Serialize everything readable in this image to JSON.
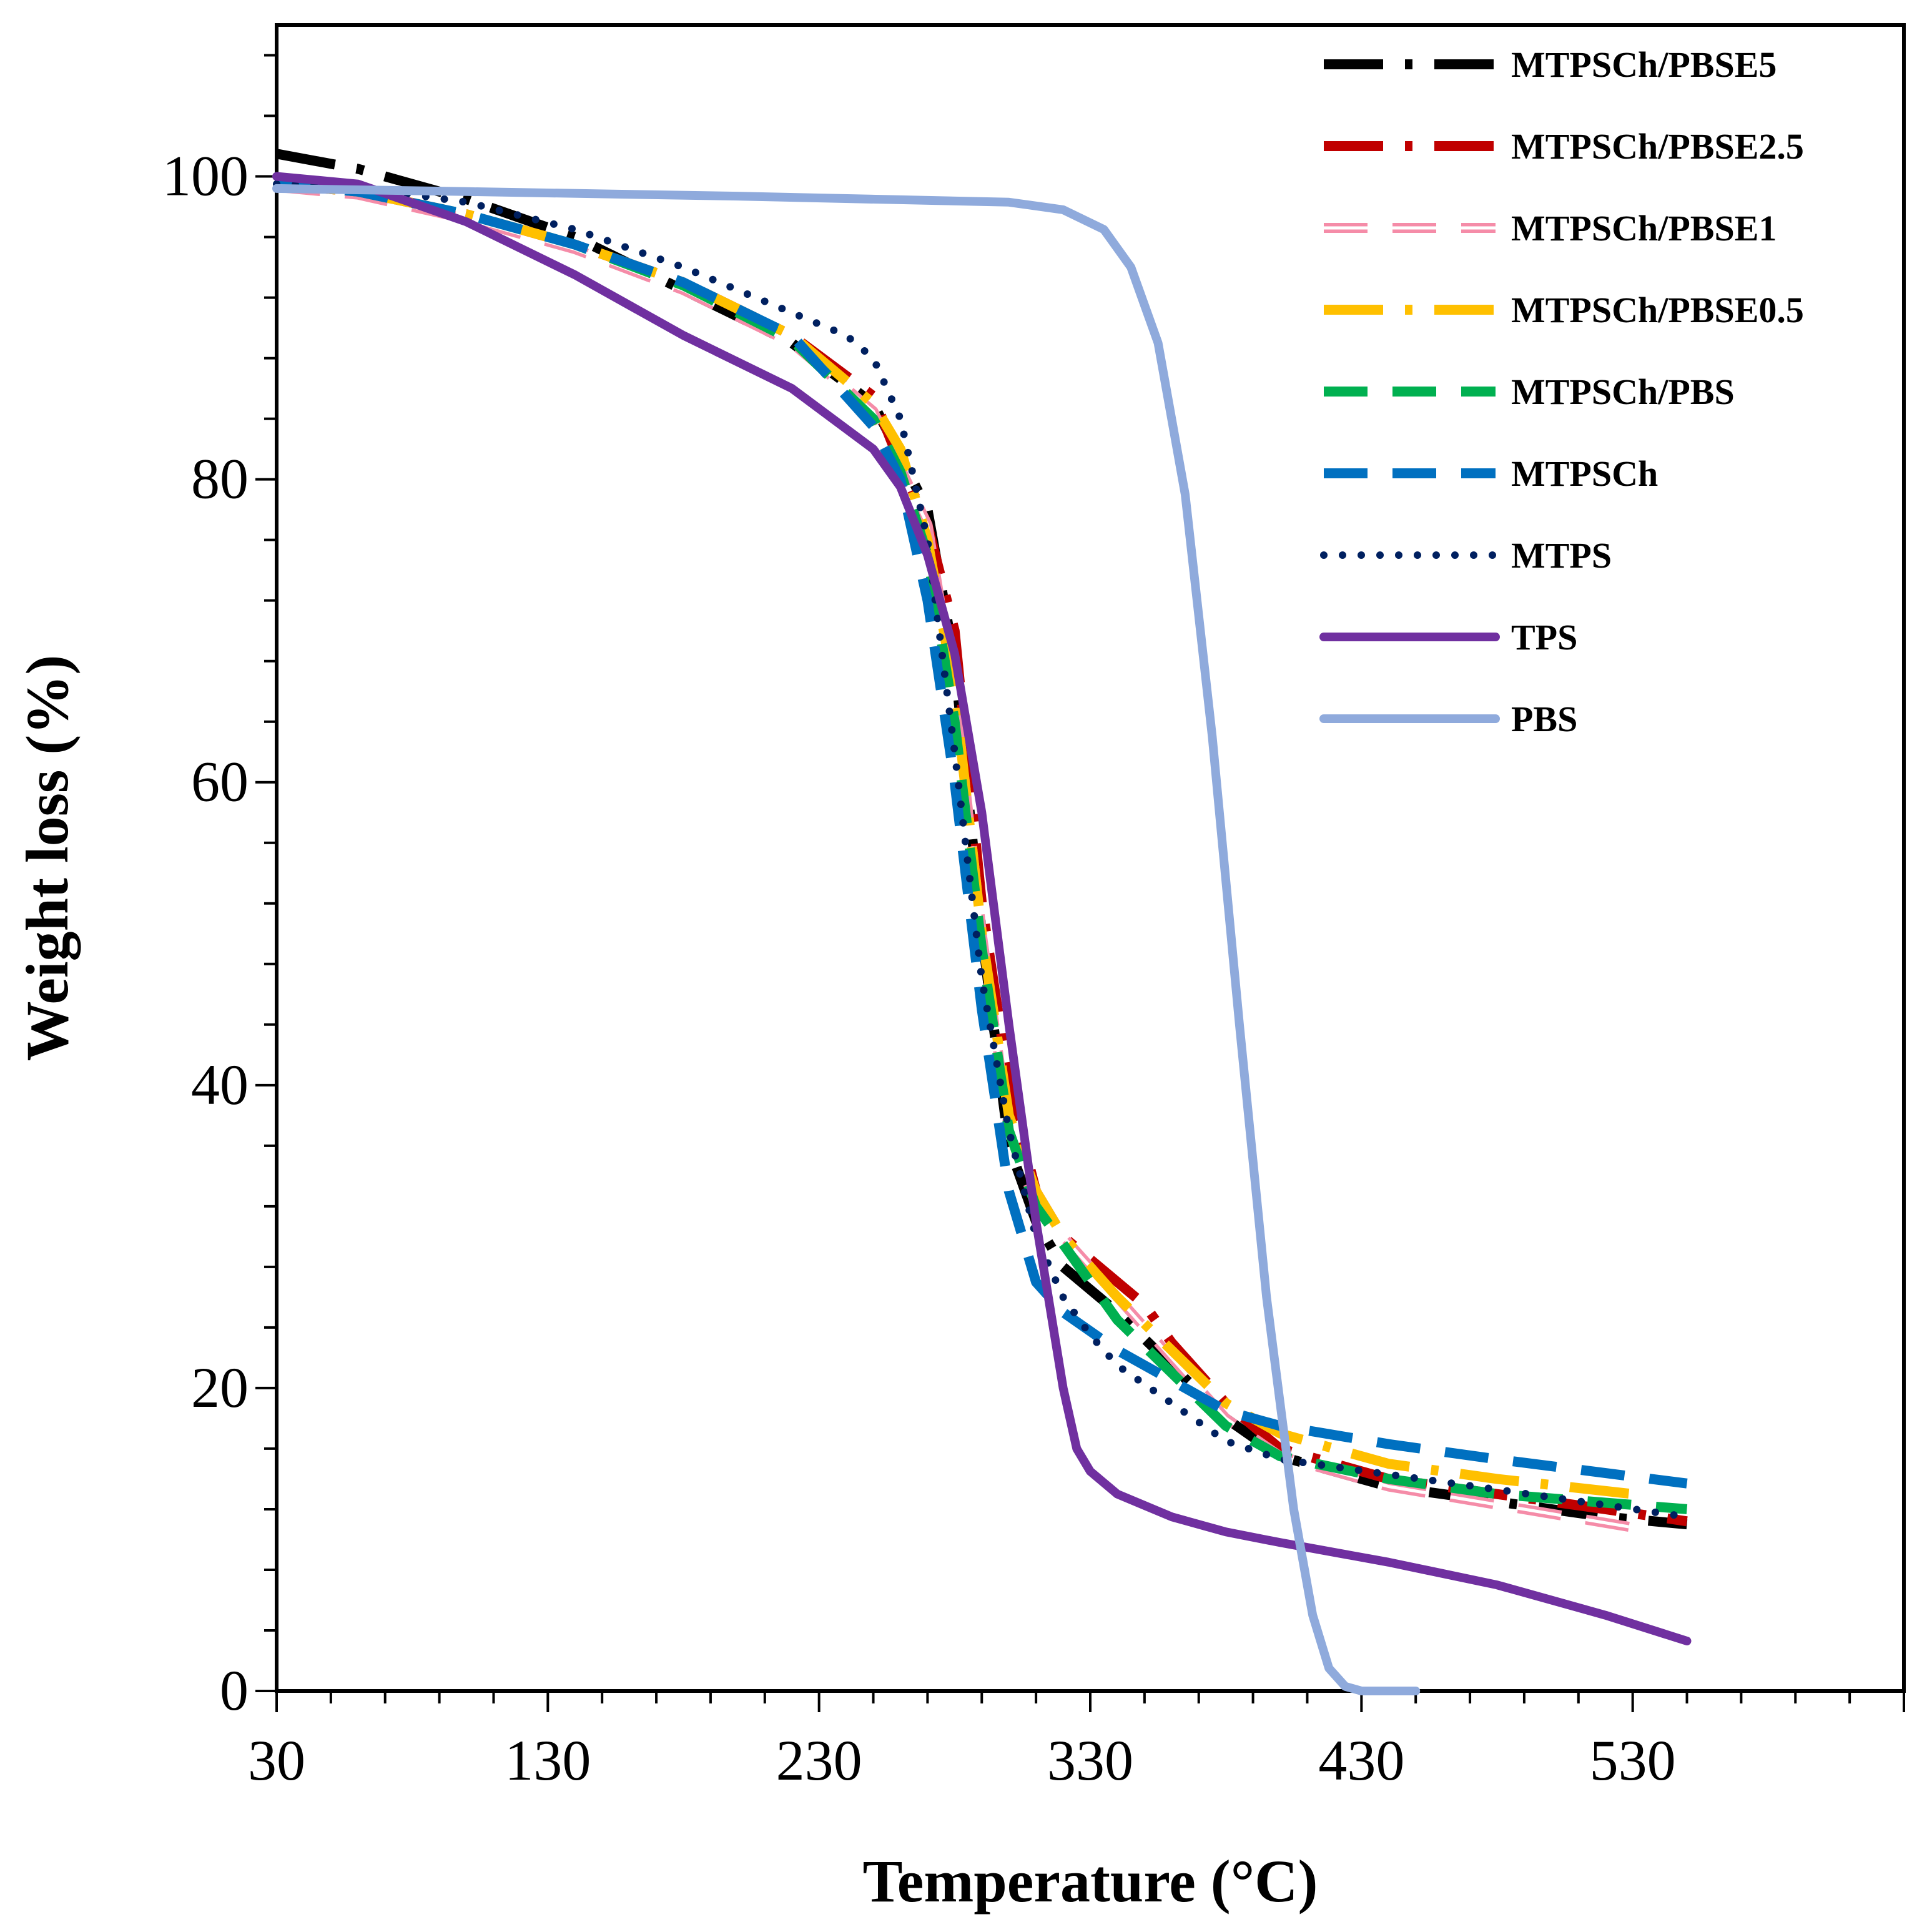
{
  "chart_data": {
    "type": "line",
    "title": "",
    "xlabel": "Temperature (°C)",
    "ylabel": "Weight loss (%)",
    "xlim": [
      30,
      630
    ],
    "ylim": [
      0,
      110
    ],
    "xticks": [
      30,
      130,
      230,
      330,
      430,
      530
    ],
    "yticks": [
      0,
      20,
      40,
      60,
      80,
      100
    ],
    "grid": false,
    "legend_position": "top-right",
    "series": [
      {
        "name": "MTPSCh/PBSE5",
        "color": "#000000",
        "style": "dash-dot",
        "x": [
          30,
          60,
          100,
          140,
          180,
          220,
          250,
          270,
          280,
          290,
          300,
          310,
          320,
          340,
          360,
          380,
          400,
          440,
          480,
          520,
          550
        ],
        "y": [
          101.5,
          100.5,
          98.5,
          96,
          92.5,
          89,
          85,
          78,
          68,
          50,
          36,
          31,
          28,
          25,
          21.5,
          18,
          15.5,
          13.5,
          12.5,
          11.5,
          11
        ]
      },
      {
        "name": "MTPSCh/PBSE2.5",
        "color": "#c00000",
        "style": "dash-dot",
        "x": [
          30,
          60,
          100,
          140,
          180,
          220,
          250,
          260,
          270,
          280,
          290,
          300,
          310,
          320,
          340,
          350,
          360,
          380,
          400,
          440,
          480,
          520,
          550
        ],
        "y": [
          99.5,
          99,
          97.5,
          95.5,
          93,
          89.5,
          85.5,
          81,
          77,
          70,
          52,
          40,
          33,
          30,
          27,
          25.5,
          23,
          19,
          16,
          14,
          13,
          12,
          11.2
        ]
      },
      {
        "name": "MTPSCh/PBSE1",
        "color": "#f58ca8",
        "style": "dash-double",
        "x": [
          30,
          60,
          100,
          140,
          180,
          220,
          250,
          270,
          280,
          290,
          300,
          310,
          320,
          340,
          360,
          380,
          400,
          440,
          480,
          530
        ],
        "y": [
          99.3,
          98.8,
          97.2,
          95.2,
          92.5,
          89,
          84.5,
          77,
          66,
          50,
          37,
          32,
          30,
          26,
          22,
          18,
          15.5,
          13.5,
          12.3,
          10.8
        ]
      },
      {
        "name": "MTPSCh/PBSE0.5",
        "color": "#ffc000",
        "style": "dash-dot",
        "x": [
          30,
          60,
          100,
          140,
          180,
          220,
          250,
          260,
          270,
          280,
          290,
          300,
          310,
          320,
          340,
          360,
          380,
          400,
          440,
          480,
          530
        ],
        "y": [
          99.5,
          99,
          97.5,
          95.5,
          93,
          89.5,
          85,
          82,
          76,
          66,
          50,
          38,
          33,
          30,
          26,
          22.5,
          19,
          17,
          15,
          14,
          13
        ]
      },
      {
        "name": "MTPSCh/PBS",
        "color": "#00b050",
        "style": "dashed",
        "x": [
          30,
          60,
          100,
          140,
          180,
          220,
          250,
          260,
          270,
          280,
          290,
          300,
          310,
          320,
          340,
          360,
          380,
          400,
          440,
          480,
          550
        ],
        "y": [
          99.5,
          99,
          97.5,
          95.5,
          92.8,
          89.2,
          84,
          80.5,
          75,
          64,
          49,
          37,
          32,
          29.5,
          24.5,
          21,
          17.5,
          15.5,
          14,
          13,
          12
        ]
      },
      {
        "name": "MTPSCh",
        "color": "#0070c0",
        "style": "dashed",
        "x": [
          30,
          60,
          100,
          140,
          180,
          220,
          250,
          260,
          270,
          280,
          290,
          300,
          310,
          320,
          340,
          360,
          380,
          400,
          440,
          480,
          550
        ],
        "y": [
          99.5,
          99,
          97.5,
          95.5,
          93,
          89.5,
          83.5,
          80,
          72,
          60,
          45,
          33,
          27,
          25,
          22.5,
          20.5,
          18.5,
          17.5,
          16.3,
          15.3,
          13.7
        ]
      },
      {
        "name": "MTPS",
        "color": "#002060",
        "style": "dotted",
        "x": [
          30,
          60,
          100,
          140,
          180,
          220,
          240,
          250,
          260,
          270,
          280,
          290,
          300,
          310,
          320,
          330,
          340,
          360,
          380,
          400,
          440,
          480,
          550
        ],
        "y": [
          99.5,
          99.3,
          98.3,
          96.5,
          94,
          91,
          89.5,
          88,
          84,
          76,
          62,
          47,
          37,
          30,
          26,
          23.5,
          21.5,
          19,
          16.5,
          15.3,
          14.3,
          13.3,
          11.5
        ]
      },
      {
        "name": "TPS",
        "color": "#7030a0",
        "style": "solid",
        "x": [
          30,
          60,
          100,
          140,
          180,
          220,
          250,
          260,
          270,
          280,
          290,
          300,
          310,
          320,
          325,
          330,
          340,
          360,
          380,
          400,
          440,
          480,
          520,
          550
        ],
        "y": [
          100,
          99.5,
          97,
          93.5,
          89.5,
          86,
          82,
          79.5,
          75,
          68.5,
          58,
          44,
          31,
          20,
          16,
          14.5,
          13,
          11.5,
          10.5,
          9.8,
          8.5,
          7,
          5,
          3.3
        ]
      },
      {
        "name": "PBS",
        "color": "#8faadc",
        "style": "solid",
        "x": [
          30,
          100,
          200,
          300,
          320,
          335,
          345,
          355,
          365,
          375,
          385,
          395,
          405,
          412,
          418,
          424,
          430,
          440,
          450
        ],
        "y": [
          99.2,
          99,
          98.7,
          98.3,
          97.8,
          96.5,
          94,
          89,
          79,
          63,
          44,
          26,
          12,
          5,
          1.5,
          0.3,
          0,
          0,
          0
        ]
      }
    ]
  }
}
